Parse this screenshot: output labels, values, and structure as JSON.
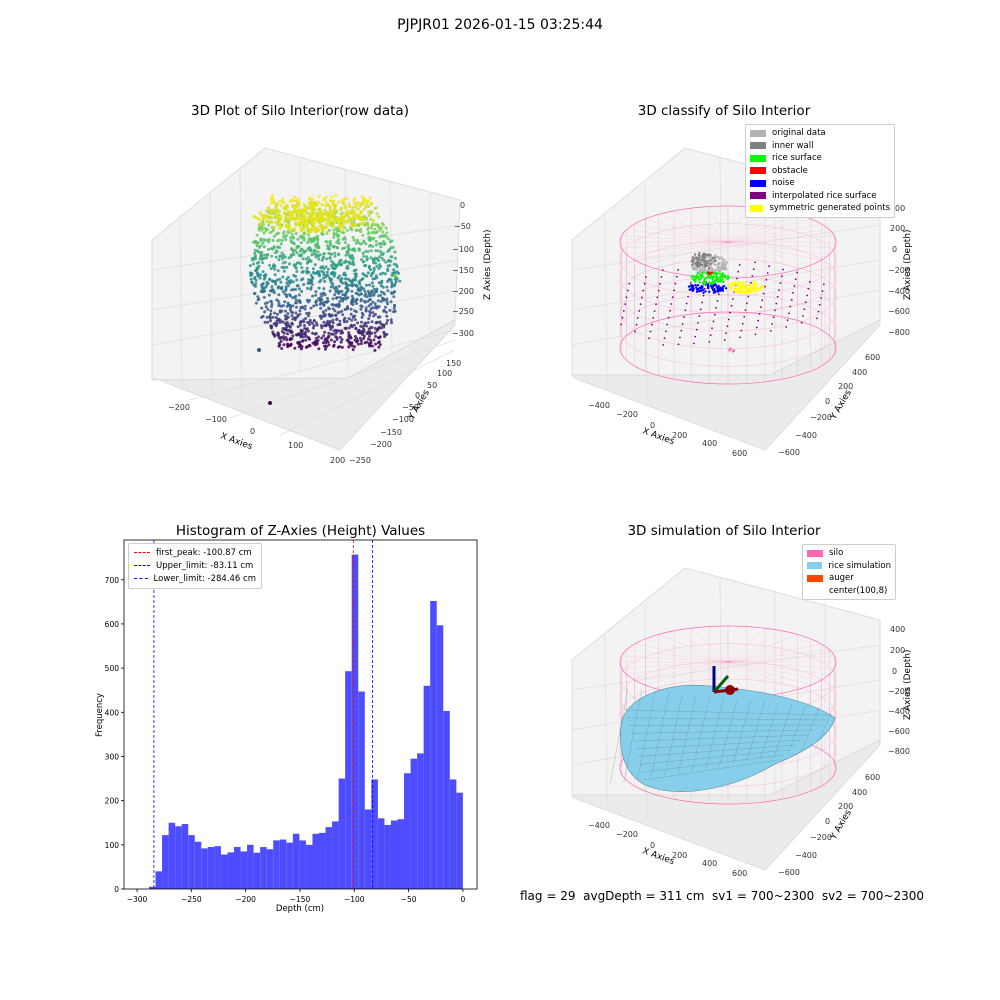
{
  "figure": {
    "suptitle": "PJPJR01 2026-01-15 03:25:44",
    "footer": "flag = 29  avgDepth = 311 cm  sv1 = 700~2300  sv2 = 700~2300"
  },
  "panels": {
    "raw": {
      "title": "3D Plot of Silo Interior(row data)",
      "xlabel": "X Axies",
      "ylabel": "Y Axies",
      "zlabel": "Z Axies (Depth)",
      "xticks": [
        "−200",
        "−100",
        "0",
        "100",
        "200"
      ],
      "yticks": [
        "−250",
        "−200",
        "−150",
        "−100",
        "−50",
        "0",
        "50",
        "100",
        "150"
      ],
      "zticks": [
        "0",
        "−50",
        "−100",
        "−150",
        "−200",
        "−250",
        "−300"
      ],
      "colormap": "viridis"
    },
    "classify": {
      "title": "3D classify of Silo Interior",
      "xlabel": "X Axies",
      "ylabel": "Y Axies",
      "zlabel": "Z Axies (Depth)",
      "xticks": [
        "−400",
        "−200",
        "0",
        "200",
        "400",
        "600"
      ],
      "yticks": [
        "−600",
        "−400",
        "−200",
        "0",
        "200",
        "400",
        "600"
      ],
      "zticks": [
        "200",
        "0",
        "−200",
        "−400",
        "−600",
        "−800"
      ],
      "ztick_top": "00",
      "legend": [
        {
          "label": "original data",
          "color": "#b3b3b3"
        },
        {
          "label": "inner wall",
          "color": "#808080"
        },
        {
          "label": "rice surface",
          "color": "#00ff00"
        },
        {
          "label": "obstacle",
          "color": "#ff0000"
        },
        {
          "label": "noise",
          "color": "#0000ff"
        },
        {
          "label": "interpolated rice surface",
          "color": "#800080"
        },
        {
          "label": "symmetric generated points",
          "color": "#ffff00"
        }
      ]
    },
    "simulation": {
      "title": "3D simulation of Silo Interior",
      "xlabel": "X Axies",
      "ylabel": "Y Axies",
      "zlabel": "Z Axies (Depth)",
      "xticks": [
        "−400",
        "−200",
        "0",
        "200",
        "400",
        "600"
      ],
      "yticks": [
        "−600",
        "−400",
        "−200",
        "0",
        "200",
        "400",
        "600"
      ],
      "zticks": [
        "400",
        "200",
        "0",
        "−200",
        "−400",
        "−600",
        "−800"
      ],
      "legend": [
        {
          "label": "silo",
          "color": "#ff69b4"
        },
        {
          "label": "rice simulation",
          "color": "#87ceeb"
        },
        {
          "label": "auger",
          "color": "#ff4500"
        },
        {
          "label": "center(100,8)",
          "color": "#ffffff"
        }
      ]
    }
  },
  "chart_data": {
    "type": "bar",
    "title": "Histogram of Z-Axies (Height) Values",
    "xlabel": "Depth (cm)",
    "ylabel": "Frequency",
    "xlim": [
      -312,
      13
    ],
    "ylim": [
      0,
      790
    ],
    "xticks": [
      -300,
      -250,
      -200,
      -150,
      -100,
      -50,
      0
    ],
    "xtick_labels": [
      "−300",
      "−250",
      "−200",
      "−150",
      "−100",
      "−50",
      "0"
    ],
    "yticks": [
      0,
      100,
      200,
      300,
      400,
      500,
      600,
      700
    ],
    "yticks_labels": [
      "0",
      "100",
      "200",
      "300",
      "400",
      "500",
      "600",
      "700"
    ],
    "bar_color": "#4d4dff",
    "bin_range": [
      -289,
      0
    ],
    "values": [
      5,
      40,
      122,
      150,
      142,
      147,
      122,
      107,
      92,
      95,
      97,
      78,
      83,
      95,
      85,
      100,
      82,
      95,
      90,
      110,
      112,
      105,
      125,
      110,
      100,
      125,
      127,
      140,
      153,
      250,
      493,
      757,
      447,
      180,
      248,
      160,
      145,
      155,
      158,
      262,
      295,
      307,
      460,
      652,
      597,
      403,
      248,
      218
    ],
    "vlines": [
      {
        "label": "first_peak: -100.87 cm",
        "x": -100.87,
        "color": "#ff0000"
      },
      {
        "label": "Upper_limit: -83.11 cm",
        "x": -83.11,
        "color": "#0000ff"
      },
      {
        "label": "Lower_limit: -284.46 cm",
        "x": -284.46,
        "color": "#0000ff"
      }
    ],
    "legend_position": "upper-left"
  }
}
